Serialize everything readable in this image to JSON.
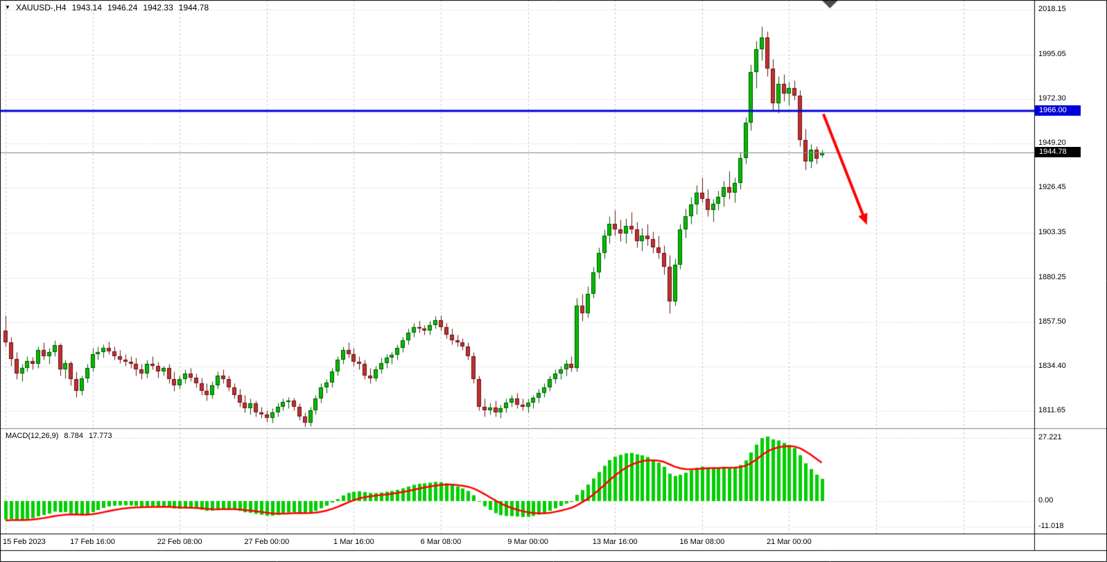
{
  "header": {
    "dropdown_icon": "▼",
    "symbol_period": "XAUUSD-,H4",
    "open": "1943.14",
    "high": "1946.24",
    "low": "1942.33",
    "close": "1944.78"
  },
  "indicator": {
    "name": "MACD(12,26,9)",
    "main_value": "8.784",
    "signal_value": "17.773"
  },
  "price_tags": {
    "hline": {
      "text": "1966.00",
      "bg": "#0000D8",
      "fg": "#FFFFFF"
    },
    "bid": {
      "text": "1944.78",
      "bg": "#000000",
      "fg": "#FFFFFF"
    }
  },
  "chart_data": {
    "type": "candlestick_with_macd",
    "symbol": "XAUUSD-",
    "timeframe": "H4",
    "price_range": {
      "top": 2023.2,
      "bottom": 1802.8
    },
    "y_ticks": [
      {
        "label": "2018.15",
        "value": 2018.15
      },
      {
        "label": "1995.05",
        "value": 1995.05
      },
      {
        "label": "1972.30",
        "value": 1972.3
      },
      {
        "label": "1949.20",
        "value": 1949.2
      },
      {
        "label": "1926.45",
        "value": 1926.45
      },
      {
        "label": "1903.35",
        "value": 1903.35
      },
      {
        "label": "1880.25",
        "value": 1880.25
      },
      {
        "label": "1857.50",
        "value": 1857.5
      },
      {
        "label": "1834.40",
        "value": 1834.4
      },
      {
        "label": "1811.65",
        "value": 1811.65
      }
    ],
    "macd_ticks": [
      {
        "label": "27.221",
        "value": 27.221
      },
      {
        "label": "0.00",
        "value": 0
      },
      {
        "label": "-11.018",
        "value": -11.018
      }
    ],
    "x_ticks": [
      {
        "label": "15 Feb 2023",
        "bar": 0
      },
      {
        "label": "17 Feb 16:00",
        "bar": 16
      },
      {
        "label": "22 Feb 08:00",
        "bar": 32
      },
      {
        "label": "27 Feb 00:00",
        "bar": 48
      },
      {
        "label": "1 Mar 16:00",
        "bar": 64
      },
      {
        "label": "6 Mar 08:00",
        "bar": 80
      },
      {
        "label": "9 Mar 00:00",
        "bar": 96
      },
      {
        "label": "13 Mar 16:00",
        "bar": 112
      },
      {
        "label": "16 Mar 08:00",
        "bar": 128
      },
      {
        "label": "21 Mar 00:00",
        "bar": 144
      }
    ],
    "extra_grid_bars": [
      160,
      176
    ],
    "candles": [
      [
        1853,
        1861,
        1845,
        1847
      ],
      [
        1847,
        1850,
        1835,
        1838.5
      ],
      [
        1838.5,
        1842,
        1828,
        1831
      ],
      [
        1831,
        1836,
        1827,
        1834
      ],
      [
        1834,
        1840,
        1832,
        1837.5
      ],
      [
        1837.5,
        1839.5,
        1833,
        1836
      ],
      [
        1836,
        1845,
        1834,
        1843
      ],
      [
        1843,
        1847,
        1838,
        1840
      ],
      [
        1840,
        1844,
        1836,
        1842
      ],
      [
        1842,
        1848,
        1840,
        1845.5
      ],
      [
        1845.5,
        1846.5,
        1830,
        1833
      ],
      [
        1833,
        1838,
        1828.5,
        1836.5
      ],
      [
        1836.5,
        1837.5,
        1825,
        1828
      ],
      [
        1828,
        1832,
        1819,
        1822
      ],
      [
        1822,
        1830,
        1820,
        1828.5
      ],
      [
        1828.5,
        1836,
        1826.5,
        1834
      ],
      [
        1834,
        1844,
        1832,
        1841
      ],
      [
        1841,
        1845,
        1838,
        1842
      ],
      [
        1842,
        1846,
        1839,
        1844
      ],
      [
        1844,
        1847.5,
        1841,
        1842.5
      ],
      [
        1842.5,
        1845,
        1838,
        1840
      ],
      [
        1840,
        1843,
        1836.5,
        1838
      ],
      [
        1838,
        1841,
        1835,
        1837
      ],
      [
        1837,
        1840,
        1834,
        1836
      ],
      [
        1836,
        1839,
        1830,
        1833
      ],
      [
        1833,
        1836,
        1828,
        1831
      ],
      [
        1831,
        1838,
        1829,
        1836
      ],
      [
        1836,
        1840,
        1833,
        1835
      ],
      [
        1835,
        1837,
        1829,
        1832
      ],
      [
        1832,
        1835,
        1830,
        1834
      ],
      [
        1834,
        1836,
        1826,
        1828
      ],
      [
        1828,
        1832,
        1822,
        1825
      ],
      [
        1825,
        1830,
        1823,
        1828
      ],
      [
        1828,
        1833,
        1826,
        1831
      ],
      [
        1831,
        1834,
        1827,
        1829
      ],
      [
        1829,
        1831,
        1824,
        1826
      ],
      [
        1826,
        1829,
        1820,
        1822
      ],
      [
        1822,
        1826,
        1817,
        1820
      ],
      [
        1820,
        1827,
        1818,
        1825
      ],
      [
        1825,
        1832,
        1823,
        1830
      ],
      [
        1830,
        1833,
        1826,
        1828
      ],
      [
        1828,
        1830,
        1822,
        1824
      ],
      [
        1824,
        1826,
        1818,
        1820
      ],
      [
        1820,
        1823,
        1814,
        1816
      ],
      [
        1816,
        1820,
        1811,
        1813
      ],
      [
        1813,
        1818,
        1810,
        1815.5
      ],
      [
        1815.5,
        1817,
        1809,
        1811
      ],
      [
        1811,
        1814,
        1808,
        1810
      ],
      [
        1810,
        1812,
        1806,
        1808
      ],
      [
        1808,
        1813,
        1805.5,
        1811
      ],
      [
        1811,
        1816,
        1809,
        1814
      ],
      [
        1814,
        1818,
        1812,
        1816.5
      ],
      [
        1816.5,
        1819,
        1813,
        1817
      ],
      [
        1817,
        1818.5,
        1812,
        1814
      ],
      [
        1814,
        1815.5,
        1807,
        1809
      ],
      [
        1809,
        1811,
        1803.5,
        1805.5
      ],
      [
        1805.5,
        1814,
        1804,
        1812
      ],
      [
        1812,
        1820,
        1810,
        1818
      ],
      [
        1818,
        1826,
        1816,
        1824
      ],
      [
        1824,
        1828,
        1821,
        1826.5
      ],
      [
        1826.5,
        1834,
        1824,
        1832
      ],
      [
        1832,
        1840,
        1830,
        1838
      ],
      [
        1838,
        1845,
        1836,
        1843
      ],
      [
        1843,
        1847,
        1839,
        1841
      ],
      [
        1841,
        1844,
        1835,
        1837
      ],
      [
        1837,
        1840,
        1833,
        1836
      ],
      [
        1836,
        1838,
        1828,
        1830
      ],
      [
        1830,
        1834,
        1826,
        1828.5
      ],
      [
        1828.5,
        1835,
        1827,
        1833
      ],
      [
        1833,
        1839,
        1831,
        1836.5
      ],
      [
        1836.5,
        1841,
        1834,
        1839
      ],
      [
        1839,
        1842,
        1836,
        1840.5
      ],
      [
        1840.5,
        1846,
        1838,
        1844
      ],
      [
        1844,
        1850,
        1842,
        1848
      ],
      [
        1848,
        1854,
        1846,
        1852
      ],
      [
        1852,
        1857,
        1850,
        1855
      ],
      [
        1855,
        1858,
        1852,
        1854
      ],
      [
        1854,
        1856,
        1851,
        1853
      ],
      [
        1853,
        1858,
        1851,
        1856
      ],
      [
        1856,
        1860.5,
        1854,
        1858.5
      ],
      [
        1858.5,
        1861,
        1853,
        1855
      ],
      [
        1855,
        1857,
        1849,
        1851
      ],
      [
        1851,
        1854,
        1846,
        1848
      ],
      [
        1848,
        1851,
        1845,
        1847
      ],
      [
        1847,
        1849,
        1843,
        1845
      ],
      [
        1845,
        1847,
        1838,
        1840
      ],
      [
        1840,
        1842,
        1826,
        1828
      ],
      [
        1828,
        1830,
        1812,
        1814
      ],
      [
        1814,
        1818,
        1809,
        1812
      ],
      [
        1812,
        1816,
        1810,
        1813.5
      ],
      [
        1813.5,
        1817,
        1809,
        1811
      ],
      [
        1811,
        1815,
        1808,
        1813
      ],
      [
        1813,
        1818,
        1811,
        1816
      ],
      [
        1816,
        1820,
        1814,
        1818
      ],
      [
        1818,
        1821,
        1813,
        1815
      ],
      [
        1815,
        1818,
        1812,
        1814
      ],
      [
        1814,
        1818,
        1811,
        1816
      ],
      [
        1816,
        1820,
        1813,
        1818.5
      ],
      [
        1818.5,
        1823,
        1816,
        1821
      ],
      [
        1821,
        1826,
        1819,
        1824
      ],
      [
        1824,
        1830,
        1822,
        1828
      ],
      [
        1828,
        1833,
        1826,
        1831
      ],
      [
        1831,
        1835,
        1828,
        1833
      ],
      [
        1833,
        1838,
        1830,
        1836
      ],
      [
        1836,
        1840,
        1832,
        1834
      ],
      [
        1834,
        1870,
        1832,
        1866
      ],
      [
        1866,
        1872,
        1858,
        1862
      ],
      [
        1862,
        1876,
        1860,
        1872
      ],
      [
        1872,
        1886,
        1870,
        1883
      ],
      [
        1883,
        1896,
        1880,
        1893
      ],
      [
        1893,
        1905,
        1890,
        1902
      ],
      [
        1902,
        1912,
        1898,
        1908
      ],
      [
        1908,
        1915,
        1902,
        1905
      ],
      [
        1905,
        1910,
        1899,
        1903
      ],
      [
        1903,
        1911,
        1898,
        1907
      ],
      [
        1907,
        1914,
        1903,
        1905
      ],
      [
        1905,
        1909,
        1896,
        1899
      ],
      [
        1899,
        1906,
        1894,
        1902
      ],
      [
        1902,
        1908,
        1897,
        1900
      ],
      [
        1900,
        1904,
        1893,
        1896
      ],
      [
        1896,
        1902,
        1890,
        1893
      ],
      [
        1893,
        1897,
        1882,
        1886
      ],
      [
        1886,
        1892,
        1862,
        1868
      ],
      [
        1868,
        1890,
        1866,
        1887
      ],
      [
        1887,
        1908,
        1885,
        1905
      ],
      [
        1905,
        1916,
        1901,
        1912
      ],
      [
        1912,
        1922,
        1908,
        1918
      ],
      [
        1918,
        1928,
        1913,
        1924
      ],
      [
        1924,
        1932,
        1919,
        1921
      ],
      [
        1921,
        1926,
        1912,
        1915
      ],
      [
        1915,
        1921,
        1909,
        1918.5
      ],
      [
        1918.5,
        1925,
        1915,
        1922
      ],
      [
        1922,
        1930,
        1917,
        1927
      ],
      [
        1927,
        1935,
        1921,
        1924
      ],
      [
        1924,
        1932,
        1919,
        1929
      ],
      [
        1929,
        1945,
        1926,
        1942
      ],
      [
        1942,
        1963,
        1939,
        1960
      ],
      [
        1960,
        1990,
        1956,
        1986
      ],
      [
        1986,
        2002,
        1978,
        1998
      ],
      [
        1998,
        2009.5,
        1992,
        2004
      ],
      [
        2004,
        2007,
        1984,
        1988
      ],
      [
        1988,
        1993,
        1966,
        1970
      ],
      [
        1970,
        1984,
        1965,
        1980
      ],
      [
        1980,
        1985,
        1971,
        1975
      ],
      [
        1975,
        1981,
        1969,
        1978
      ],
      [
        1978,
        1982,
        1972,
        1974
      ],
      [
        1974,
        1977,
        1948,
        1951
      ],
      [
        1951,
        1957,
        1936,
        1940
      ],
      [
        1940,
        1949,
        1937,
        1946
      ],
      [
        1946,
        1948,
        1939,
        1941.5
      ],
      [
        1943.14,
        1946.24,
        1942.33,
        1944.78
      ]
    ],
    "overlays": {
      "horizontal_line": 1966.0,
      "bid_price": 1944.78
    },
    "annotations": {
      "trend_arrow": {
        "from_bar": 150.3,
        "from_price": 1964.5,
        "to_bar": 158.3,
        "to_price": 1907.5,
        "color": "#FF0000",
        "width": 4
      },
      "shift_marker_bar": 151.5
    },
    "macd": {
      "fast": 12,
      "slow": 26,
      "signal_period": 9,
      "seed_ema_fast": 1843,
      "seed_ema_slow": 1852,
      "seed_signal": -8.5,
      "last_main": 8.784,
      "last_signal": 17.773
    },
    "colors": {
      "background": "#FFFFFF",
      "grid": "#C8C8C8",
      "up_fill": "#00BB00",
      "up_line": "#005500",
      "down_fill": "#C03030",
      "down_line": "#661111",
      "hist": "#00CF00",
      "signal_line": "#FF0000",
      "hline": "#0000D8",
      "bid_line": "#778899",
      "axis_line": "#000000",
      "separator": "#808080",
      "marker": "#4D4D4D"
    }
  }
}
